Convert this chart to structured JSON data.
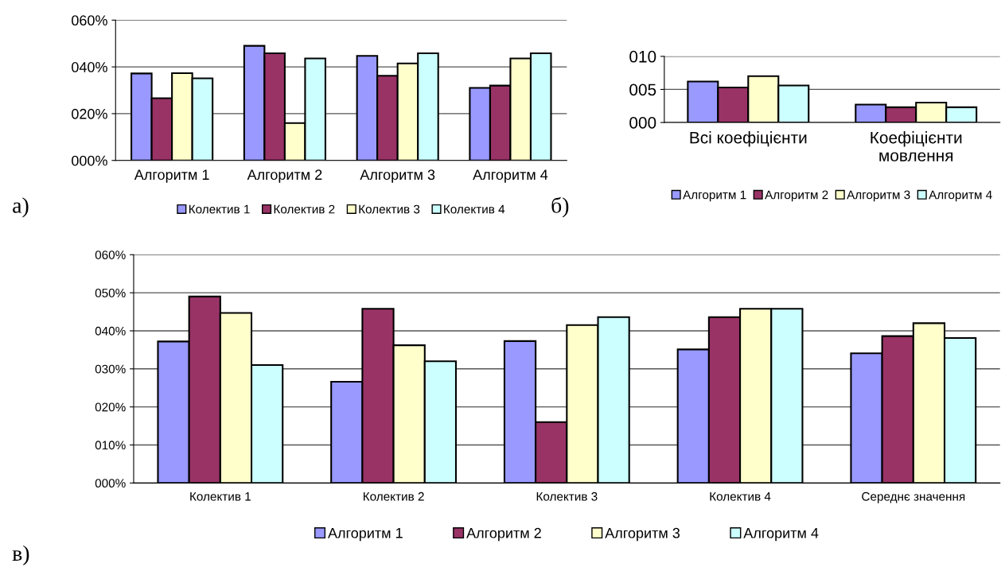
{
  "chart_data": [
    {
      "type": "bar",
      "categories": [
        "Алгоритм 1",
        "Алгоритм 2",
        "Алгоритм 3",
        "Алгоритм 4"
      ],
      "series": [
        {
          "name": "Колектив 1",
          "color": "#9999ff",
          "values": [
            37.2,
            49,
            44.7,
            31
          ]
        },
        {
          "name": "Колектив 2",
          "color": "#993366",
          "values": [
            26.6,
            45.8,
            36.2,
            32
          ]
        },
        {
          "name": "Колектив 3",
          "color": "#ffffcc",
          "values": [
            37.3,
            16,
            41.5,
            43.6
          ]
        },
        {
          "name": "Колектив 4",
          "color": "#ccffff",
          "values": [
            35.1,
            43.6,
            45.8,
            45.8
          ]
        }
      ],
      "ylim": [
        0,
        60
      ],
      "yticks": [
        {
          "value": 0,
          "label": "000%"
        },
        {
          "value": 20,
          "label": "020%"
        },
        {
          "value": 40,
          "label": "040%"
        },
        {
          "value": 60,
          "label": "060%"
        }
      ],
      "grid": "y",
      "legend": "bottom",
      "annotations": [
        "а)"
      ]
    },
    {
      "type": "bar",
      "categories": [
        "Всі коефіцієнти",
        "Коефіцієнти\nмовлення"
      ],
      "series": [
        {
          "name": "Алгоритм 1",
          "color": "#9999ff",
          "values": [
            6.2,
            2.7
          ]
        },
        {
          "name": "Алгоритм 2",
          "color": "#993366",
          "values": [
            5.3,
            2.3
          ]
        },
        {
          "name": "Алгоритм 3",
          "color": "#ffffcc",
          "values": [
            7.0,
            3.0
          ]
        },
        {
          "name": "Алгоритм 4",
          "color": "#ccffff",
          "values": [
            5.6,
            2.3
          ]
        }
      ],
      "ylim": [
        0,
        10
      ],
      "yticks": [
        {
          "value": 0,
          "label": "000"
        },
        {
          "value": 5,
          "label": "005"
        },
        {
          "value": 10,
          "label": "010"
        }
      ],
      "grid": "y",
      "legend": "bottom",
      "annotations": [
        "б)"
      ]
    },
    {
      "type": "bar",
      "categories": [
        "Колектив 1",
        "Колектив 2",
        "Колектив 3",
        "Колектив 4",
        "Середнє значення"
      ],
      "series": [
        {
          "name": "Алгоритм 1",
          "color": "#9999ff",
          "values": [
            37.2,
            26.6,
            37.3,
            35.1,
            34.1
          ]
        },
        {
          "name": "Алгоритм 2",
          "color": "#993366",
          "values": [
            49,
            45.8,
            16,
            43.6,
            38.6
          ]
        },
        {
          "name": "Алгоритм 3",
          "color": "#ffffcc",
          "values": [
            44.7,
            36.2,
            41.5,
            45.8,
            42
          ]
        },
        {
          "name": "Алгоритм 4",
          "color": "#ccffff",
          "values": [
            31,
            32,
            43.6,
            45.8,
            38.1
          ]
        }
      ],
      "ylim": [
        0,
        60
      ],
      "yticks": [
        {
          "value": 0,
          "label": "000%"
        },
        {
          "value": 10,
          "label": "010%"
        },
        {
          "value": 20,
          "label": "020%"
        },
        {
          "value": 30,
          "label": "030%"
        },
        {
          "value": 40,
          "label": "040%"
        },
        {
          "value": 50,
          "label": "050%"
        },
        {
          "value": 60,
          "label": "060%"
        }
      ],
      "grid": "y",
      "legend": "bottom",
      "annotations": [
        "в)"
      ]
    }
  ]
}
